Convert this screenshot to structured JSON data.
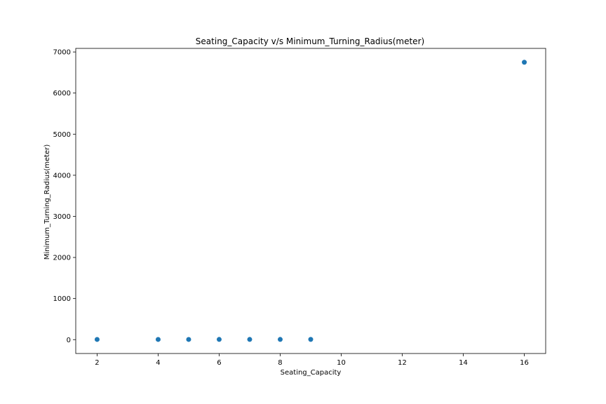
{
  "chart_data": {
    "type": "scatter",
    "title": "Seating_Capacity v/s Minimum_Turning_Radius(meter)",
    "xlabel": "Seating_Capacity",
    "ylabel": "Minimum_Turning_Radius(meter)",
    "xlim": [
      1.3,
      16.7
    ],
    "ylim": [
      -337,
      7087
    ],
    "xticks": [
      2,
      4,
      6,
      8,
      10,
      12,
      14,
      16
    ],
    "xtick_labels": [
      "2",
      "4",
      "6",
      "8",
      "10",
      "12",
      "14",
      "16"
    ],
    "yticks": [
      0,
      1000,
      2000,
      3000,
      4000,
      5000,
      6000,
      7000
    ],
    "ytick_labels": [
      "0",
      "1000",
      "2000",
      "3000",
      "4000",
      "5000",
      "6000",
      "7000"
    ],
    "grid": false,
    "marker_color": "#1f77b4",
    "points": [
      {
        "x": 2,
        "y": 5.0
      },
      {
        "x": 4,
        "y": 5.1
      },
      {
        "x": 5,
        "y": 5.2
      },
      {
        "x": 6,
        "y": 5.5
      },
      {
        "x": 7,
        "y": 5.5
      },
      {
        "x": 8,
        "y": 5.8
      },
      {
        "x": 9,
        "y": 6.0
      },
      {
        "x": 16,
        "y": 6750
      }
    ]
  }
}
